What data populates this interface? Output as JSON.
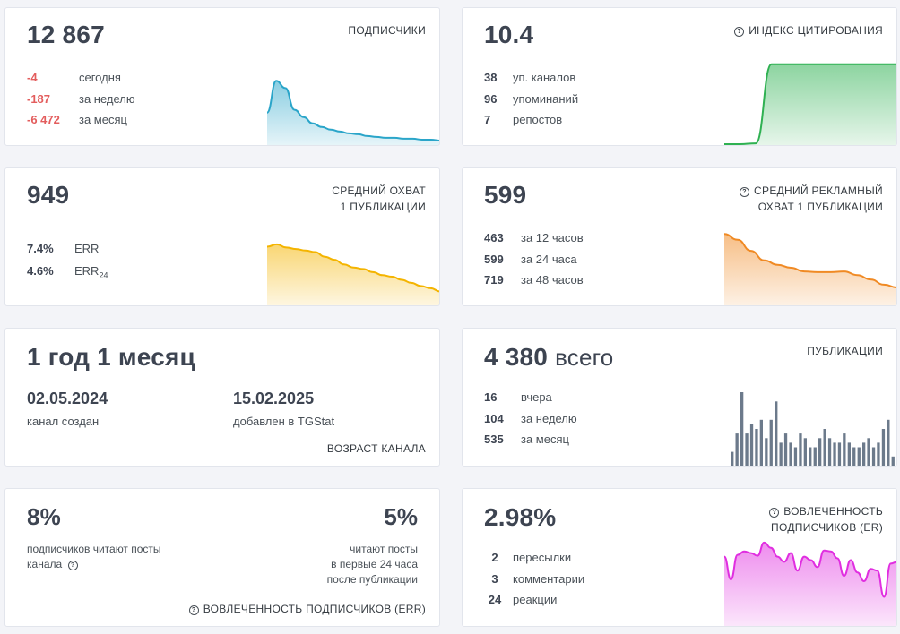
{
  "subscribers": {
    "value": "12 867",
    "label": "ПОДПИСЧИКИ",
    "rows": [
      {
        "value": "-4",
        "text": "сегодня"
      },
      {
        "value": "-187",
        "text": "за неделю"
      },
      {
        "value": "-6 472",
        "text": "за месяц"
      }
    ],
    "chart_color": "#2aa5c9",
    "chart_data": {
      "type": "area",
      "values": [
        0.35,
        0.7,
        0.62,
        0.38,
        0.3,
        0.23,
        0.19,
        0.16,
        0.14,
        0.12,
        0.11,
        0.09,
        0.08,
        0.07,
        0.07,
        0.06,
        0.06,
        0.05,
        0.05,
        0.04
      ]
    }
  },
  "citation": {
    "value": "10.4",
    "label": "ИНДЕКС ЦИТИРОВАНИЯ",
    "rows": [
      {
        "value": "38",
        "text": "уп. каналов"
      },
      {
        "value": "96",
        "text": "упоминаний"
      },
      {
        "value": "7",
        "text": "репостов"
      }
    ],
    "chart_color": "#2fb152",
    "chart_data": {
      "type": "area",
      "values": [
        0,
        0,
        0.01,
        0.95,
        0.95,
        0.95,
        0.95,
        0.95,
        0.95,
        0.95,
        0.95,
        0.95
      ]
    }
  },
  "reach": {
    "value": "949",
    "label_line1": "СРЕДНИЙ ОХВАТ",
    "label_line2": "1 ПУБЛИКАЦИИ",
    "rows": [
      {
        "value": "7.4%",
        "text": "ERR"
      },
      {
        "value": "4.6%",
        "text": "ERR",
        "sub": "24"
      }
    ],
    "chart_color": "#f4b400",
    "chart_data": {
      "type": "area",
      "values": [
        0.75,
        0.78,
        0.74,
        0.72,
        0.7,
        0.68,
        0.62,
        0.58,
        0.52,
        0.48,
        0.46,
        0.42,
        0.38,
        0.36,
        0.32,
        0.28,
        0.24,
        0.21,
        0.17
      ]
    }
  },
  "ad_reach": {
    "value": "599",
    "label_line1": "СРЕДНИЙ РЕКЛАМНЫЙ",
    "label_line2": "ОХВАТ 1 ПУБЛИКАЦИИ",
    "rows": [
      {
        "value": "463",
        "text": "за 12 часов"
      },
      {
        "value": "599",
        "text": "за 24 часа"
      },
      {
        "value": "719",
        "text": "за 48 часов"
      }
    ],
    "chart_color": "#f08a24",
    "chart_data": {
      "type": "area",
      "values": [
        0.96,
        0.88,
        0.73,
        0.6,
        0.54,
        0.5,
        0.45,
        0.44,
        0.44,
        0.45,
        0.4,
        0.34,
        0.27,
        0.23
      ]
    }
  },
  "age": {
    "value": "1 год 1 месяц",
    "created_date": "02.05.2024",
    "created_label": "канал создан",
    "added_date": "15.02.2025",
    "added_label": "добавлен в TGStat",
    "label": "ВОЗРАСТ КАНАЛА"
  },
  "posts": {
    "value": "4 380",
    "suffix": "всего",
    "label": "ПУБЛИКАЦИИ",
    "rows": [
      {
        "value": "16",
        "text": "вчера"
      },
      {
        "value": "104",
        "text": "за неделю"
      },
      {
        "value": "535",
        "text": "за месяц"
      }
    ],
    "chart_color": "#6c7a8b",
    "chart_data": {
      "type": "bar",
      "values": [
        3,
        7,
        16,
        7,
        9,
        8,
        10,
        6,
        10,
        14,
        5,
        7,
        5,
        4,
        7,
        6,
        4,
        4,
        6,
        8,
        6,
        5,
        5,
        7,
        5,
        4,
        4,
        5,
        6,
        4,
        5,
        8,
        10,
        2
      ]
    }
  },
  "err_card": {
    "left_value": "8%",
    "left_line1": "подписчиков читают посты",
    "left_line2": "канала",
    "right_value": "5%",
    "right_line1": "читают посты",
    "right_line2": "в первые 24 часа",
    "right_line3": "после публикации",
    "label": "ВОВЛЕЧЕННОСТЬ ПОДПИСЧИКОВ (ERR)"
  },
  "er_card": {
    "value": "2.98%",
    "label_line1": "ВОВЛЕЧЕННОСТЬ",
    "label_line2": "ПОДПИСЧИКОВ (ER)",
    "rows": [
      {
        "value": "2",
        "text": "пересылки"
      },
      {
        "value": "3",
        "text": "комментарии"
      },
      {
        "value": "24",
        "text": "реакции"
      }
    ],
    "chart_color": "#e02ee0",
    "chart_data": {
      "type": "area",
      "values": [
        0.78,
        0.52,
        0.8,
        0.84,
        0.82,
        0.79,
        0.94,
        0.88,
        0.78,
        0.72,
        0.82,
        0.62,
        0.78,
        0.74,
        0.66,
        0.85,
        0.84,
        0.76,
        0.56,
        0.74,
        0.6,
        0.5,
        0.64,
        0.62,
        0.32,
        0.7,
        0.72
      ]
    }
  }
}
